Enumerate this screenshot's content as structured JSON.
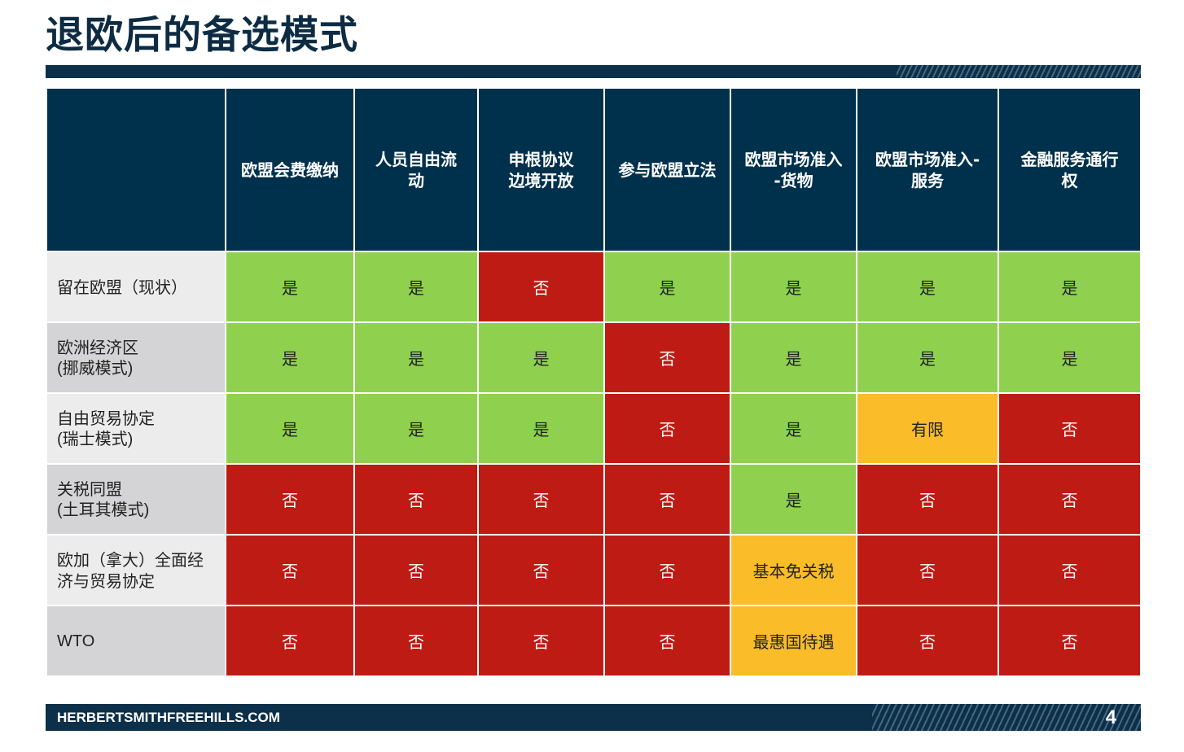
{
  "title": "退欧后的备选模式",
  "columns": [
    [
      "欧盟会费缴纳"
    ],
    [
      "人员自由流",
      "动"
    ],
    [
      "申根协议",
      "边境开放"
    ],
    [
      "参与欧盟立法"
    ],
    [
      "欧盟市场准入",
      "-货物"
    ],
    [
      "欧盟市场准入-",
      "服务"
    ],
    [
      "金融服务通行",
      "权"
    ]
  ],
  "rows": [
    {
      "label": [
        "留在欧盟（现状）"
      ],
      "cells": [
        "是",
        "是",
        "否",
        "是",
        "是",
        "是",
        "是"
      ]
    },
    {
      "label": [
        "欧洲经济区",
        "(挪威模式)"
      ],
      "cells": [
        "是",
        "是",
        "是",
        "否",
        "是",
        "是",
        "是"
      ]
    },
    {
      "label": [
        "自由贸易协定",
        "(瑞士模式)"
      ],
      "cells": [
        "是",
        "是",
        "是",
        "否",
        "是",
        "有限",
        "否"
      ]
    },
    {
      "label": [
        "关税同盟",
        "(土耳其模式)"
      ],
      "cells": [
        "否",
        "否",
        "否",
        "否",
        "是",
        "否",
        "否"
      ]
    },
    {
      "label": [
        "欧加（拿大）全面经",
        "济与贸易协定"
      ],
      "cells": [
        "否",
        "否",
        "否",
        "否",
        "基本免关税",
        "否",
        "否"
      ]
    },
    {
      "label": [
        "WTO"
      ],
      "cells": [
        "否",
        "否",
        "否",
        "否",
        "最惠国待遇",
        "否",
        "否"
      ]
    }
  ],
  "colors": {
    "yes": "#8fd14f",
    "no": "#bd1b13",
    "partial": "#fbbc2a",
    "header": "#00314c",
    "bar": "#0c3049"
  },
  "footer": {
    "website": "HERBERTSMITHFREEHILLS.COM",
    "page_number": "4"
  }
}
